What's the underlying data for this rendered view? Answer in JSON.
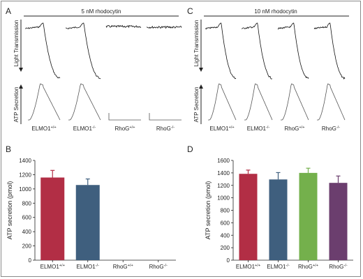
{
  "panels": {
    "A": {
      "letter": "A",
      "title": "5 nM rhodocytin",
      "y_top_label": "Light Transmission",
      "y_bottom_label": "ATP Secretion",
      "traces": [
        {
          "label": "ELMO1",
          "sup": "+/+",
          "aggregation": true,
          "secretion": true
        },
        {
          "label": "ELMO1",
          "sup": "-/-",
          "aggregation": true,
          "secretion": true
        },
        {
          "label": "RhoG",
          "sup": "+/+",
          "aggregation": false,
          "secretion": false
        },
        {
          "label": "RhoG",
          "sup": "-/-",
          "aggregation": false,
          "secretion": false
        }
      ]
    },
    "C": {
      "letter": "C",
      "title": "10 nM rhodocytin",
      "y_top_label": "Light Transmission",
      "y_bottom_label": "ATP Secretion",
      "traces": [
        {
          "label": "ELMO1",
          "sup": "+/+",
          "aggregation": true,
          "secretion": true
        },
        {
          "label": "ELMO1",
          "sup": "-/-",
          "aggregation": true,
          "secretion": true
        },
        {
          "label": "RhoG",
          "sup": "+/+",
          "aggregation": true,
          "secretion": true
        },
        {
          "label": "RhoG",
          "sup": "-/-",
          "aggregation": true,
          "secretion": true
        }
      ]
    }
  },
  "chart_data": [
    {
      "panel": "B",
      "type": "bar",
      "xlabel": "",
      "ylabel": "ATP secretion (pmol)",
      "ylim": [
        0,
        1400
      ],
      "yticks": [
        0,
        200,
        400,
        600,
        800,
        1000,
        1200,
        1400
      ],
      "categories": [
        {
          "label": "ELMO1",
          "sup": "+/+"
        },
        {
          "label": "ELMO1",
          "sup": "-/-"
        },
        {
          "label": "RhoG",
          "sup": "+/+"
        },
        {
          "label": "RhoG",
          "sup": "-/-"
        }
      ],
      "values": [
        1160,
        1055,
        0,
        0
      ],
      "errors": [
        100,
        85,
        0,
        0
      ],
      "colors": [
        "#b22e45",
        "#3f5f7e",
        "#b22e45",
        "#3f5f7e"
      ]
    },
    {
      "panel": "D",
      "type": "bar",
      "xlabel": "",
      "ylabel": "ATP secretion (pmol)",
      "ylim": [
        0,
        1600
      ],
      "yticks": [
        0,
        200,
        400,
        600,
        800,
        1000,
        1200,
        1400,
        1600
      ],
      "categories": [
        {
          "label": "ELMO1",
          "sup": "+/+"
        },
        {
          "label": "ELMO1",
          "sup": "-/-"
        },
        {
          "label": "RhoG",
          "sup": "+/+"
        },
        {
          "label": "RhoG",
          "sup": "-/-"
        }
      ],
      "values": [
        1385,
        1295,
        1400,
        1240
      ],
      "errors": [
        60,
        110,
        75,
        110
      ],
      "colors": [
        "#b22e45",
        "#3f5f7e",
        "#74b04c",
        "#6b3e6e"
      ]
    }
  ],
  "panel_letters": {
    "B": "B",
    "D": "D"
  }
}
